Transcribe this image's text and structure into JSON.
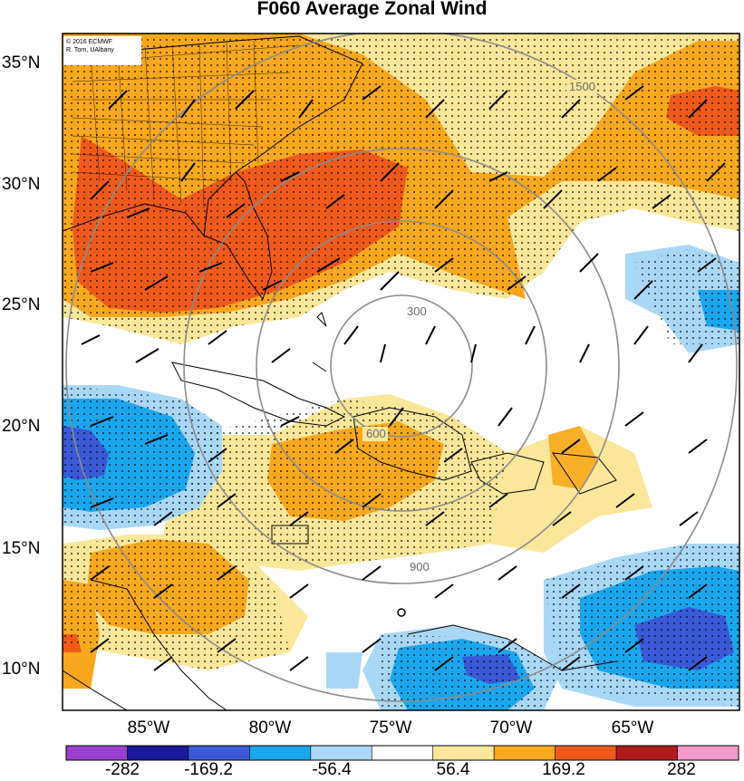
{
  "title": "F060 Average Zonal Wind",
  "credit": {
    "line1": "© 2016 ECMWF",
    "line2": "R. Torn, UAlbany"
  },
  "lat_labels": [
    "35°N",
    "30°N",
    "25°N",
    "20°N",
    "15°N",
    "10°N"
  ],
  "lon_labels": [
    "85°W",
    "80°W",
    "75°W",
    "70°W",
    "65°W"
  ],
  "contour_labels": [
    "300",
    "600",
    "900",
    "1500"
  ],
  "colorbar": {
    "labels": [
      "-282",
      "-169.2",
      "-56.4",
      "56.4",
      "169.2",
      "282"
    ],
    "colors": [
      "#9b3fd0",
      "#1a1a9a",
      "#3a5ad8",
      "#1aa7ee",
      "#a9d8f7",
      "#ffffff",
      "#fbe79a",
      "#f7a81c",
      "#ef5a1b",
      "#b31c1c",
      "#f49ac8"
    ]
  },
  "shading_colors": {
    "yellow": "#fbe79a",
    "orange": "#f7a81c",
    "red": "#ef5a1b",
    "lightblue": "#a9d8f7",
    "blue": "#1aa7ee",
    "darkblue": "#3a5ad8"
  }
}
